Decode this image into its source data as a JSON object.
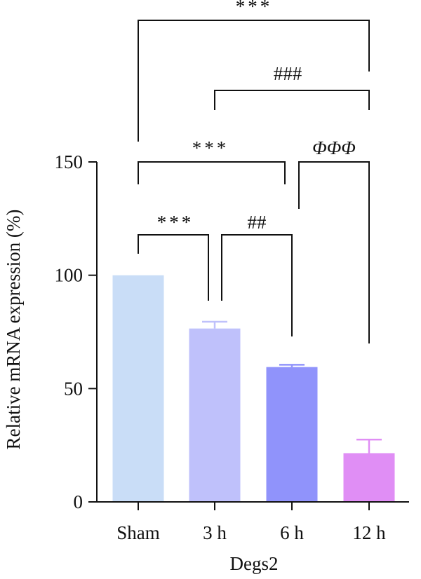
{
  "chart_data": {
    "type": "bar",
    "categories": [
      "Sham",
      "3 h",
      "6 h",
      "12 h"
    ],
    "values": [
      100,
      76.5,
      59.5,
      21.5
    ],
    "errors": [
      0,
      3,
      1,
      6
    ],
    "colors": [
      "#c9ddf7",
      "#bfc1fb",
      "#9093fb",
      "#e08ef5"
    ],
    "xlabel": "Degs2",
    "ylabel": "Relative mRNA expression (%)",
    "ylim": [
      0,
      150
    ],
    "yticks": [
      0,
      50,
      100,
      150
    ],
    "significance": [
      {
        "from": 0,
        "to": 1,
        "label": "***"
      },
      {
        "from": 1,
        "to": 2,
        "label": "##"
      },
      {
        "from": 0,
        "to": 2,
        "label": "***"
      },
      {
        "from": 2,
        "to": 3,
        "label": "ΦΦΦ"
      },
      {
        "from": 1,
        "to": 3,
        "label": "###"
      },
      {
        "from": 0,
        "to": 3,
        "label": "***"
      }
    ]
  }
}
